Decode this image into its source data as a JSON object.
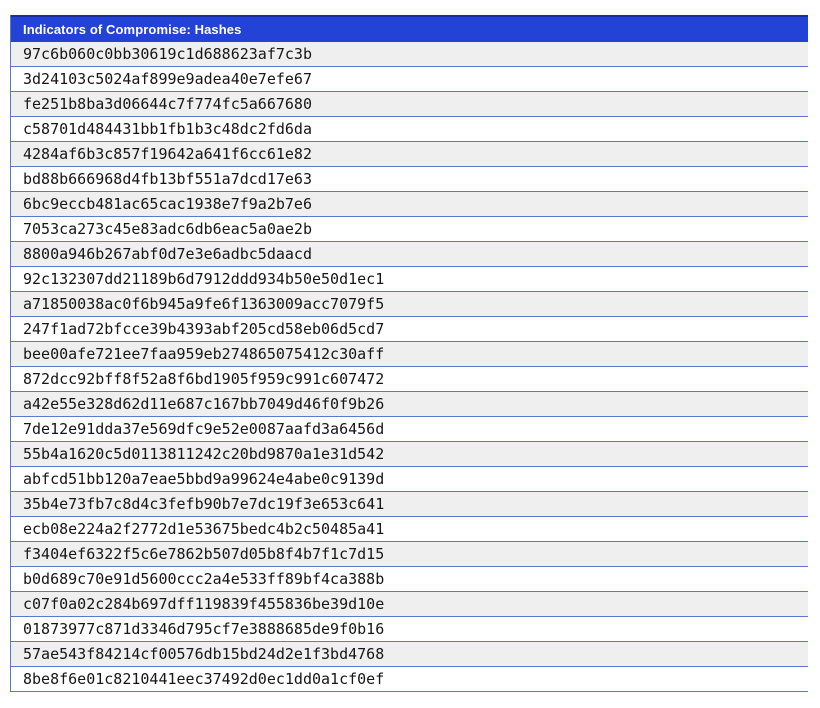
{
  "page": {
    "background": "#ffffff"
  },
  "ioc_table": {
    "title": "Indicators of Compromise: Hashes",
    "rows": [
      "97c6b060c0bb30619c1d688623af7c3b",
      "3d24103c5024af899e9adea40e7efe67",
      "fe251b8ba3d06644c7f774fc5a667680",
      "c58701d484431bb1fb1b3c48dc2fd6da",
      "4284af6b3c857f19642a641f6cc61e82",
      "bd88b666968d4fb13bf551a7dcd17e63",
      "6bc9eccb481ac65cac1938e7f9a2b7e6",
      "7053ca273c45e83adc6db6eac5a0ae2b",
      "8800a946b267abf0d7e3e6adbc5daacd",
      "92c132307dd21189b6d7912ddd934b50e50d1ec1",
      "a71850038ac0f6b945a9fe6f1363009acc7079f5",
      "247f1ad72bfcce39b4393abf205cd58eb06d5cd7",
      "bee00afe721ee7faa959eb274865075412c30aff",
      "872dcc92bff8f52a8f6bd1905f959c991c607472",
      "a42e55e328d62d11e687c167bb7049d46f0f9b26",
      "7de12e91dda37e569dfc9e52e0087aafd3a6456d",
      "55b4a1620c5d0113811242c20bd9870a1e31d542",
      "abfcd51bb120a7eae5bbd9a99624e4abe0c9139d",
      "35b4e73fb7c8d4c3fefb90b7e7dc19f3e653c641",
      "ecb08e224a2f2772d1e53675bedc4b2c50485a41",
      "f3404ef6322f5c6e7862b507d05b8f4b7f1c7d15",
      "b0d689c70e91d5600ccc2a4e533ff89bf4ca388b",
      "c07f0a02c284b697dff119839f455836be39d10e",
      "01873977c871d3346d795cf7e3888685de9f0b16",
      "57ae543f84214cf00576db15bd24d2e1f3bd4768",
      "8be8f6e01c8210441eec37492d0ec1dd0a1cf0ef"
    ],
    "colors": {
      "header_bg": "#2343d7",
      "header_top_border": "#1b2da0",
      "header_text": "#ffffff",
      "row_separator": "#5d77ca",
      "alt_row_bg": "#efefef",
      "row_bg": "#ffffff",
      "hash_text": "#161616"
    }
  }
}
